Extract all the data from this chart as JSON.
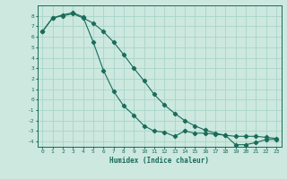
{
  "xlabel": "Humidex (Indice chaleur)",
  "background_color": "#cce8df",
  "grid_color": "#aad4c8",
  "line_color": "#1a6b5a",
  "xlim": [
    -0.5,
    23.5
  ],
  "ylim": [
    -4.5,
    9.0
  ],
  "xticks": [
    0,
    1,
    2,
    3,
    4,
    5,
    6,
    7,
    8,
    9,
    10,
    11,
    12,
    13,
    14,
    15,
    16,
    17,
    18,
    19,
    20,
    21,
    22,
    23
  ],
  "yticks": [
    -4,
    -3,
    -2,
    -1,
    0,
    1,
    2,
    3,
    4,
    5,
    6,
    7,
    8
  ],
  "series1_x": [
    0,
    1,
    2,
    3,
    4,
    5,
    6,
    7,
    8,
    9,
    10,
    11,
    12,
    13,
    14,
    15,
    16,
    17,
    18,
    19,
    20,
    21,
    22,
    23
  ],
  "series1_y": [
    6.5,
    7.8,
    8.0,
    8.2,
    7.8,
    7.3,
    6.5,
    5.5,
    4.3,
    3.0,
    1.8,
    0.5,
    -0.5,
    -1.3,
    -2.0,
    -2.5,
    -2.9,
    -3.2,
    -3.4,
    -3.5,
    -3.5,
    -3.5,
    -3.6,
    -3.7
  ],
  "series2_x": [
    0,
    1,
    2,
    3,
    4,
    5,
    6,
    7,
    8,
    9,
    10,
    11,
    12,
    13,
    14,
    15,
    16,
    17,
    18,
    19,
    20,
    21,
    22,
    23
  ],
  "series2_y": [
    6.5,
    7.8,
    8.1,
    8.3,
    7.9,
    5.5,
    2.8,
    0.8,
    -0.6,
    -1.5,
    -2.5,
    -3.0,
    -3.1,
    -3.5,
    -3.0,
    -3.2,
    -3.2,
    -3.3,
    -3.4,
    -4.3,
    -4.3,
    -4.1,
    -3.8,
    -3.8
  ]
}
